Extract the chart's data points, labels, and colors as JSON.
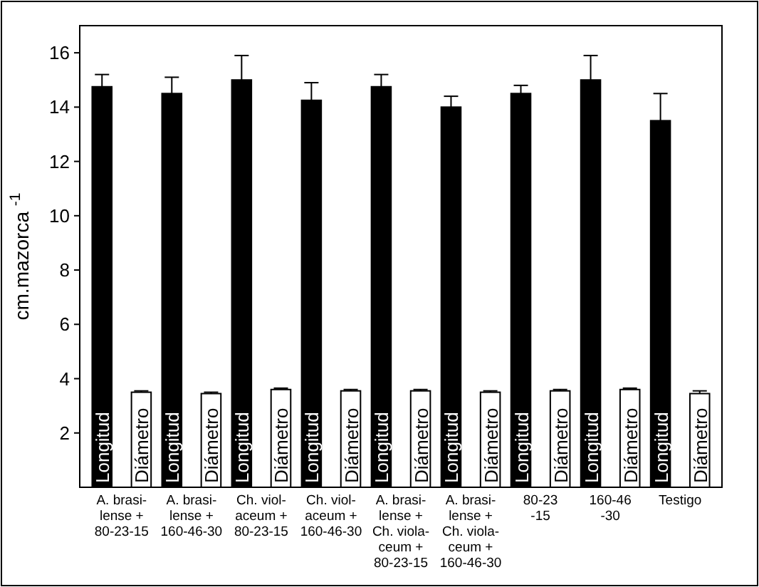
{
  "chart_data": {
    "type": "bar",
    "ylabel": "cm.mazorca $^{-1}$",
    "categories": [
      "A. brasi-\nlense +\n80-23-15",
      "A. brasi-\nlense +\n160-46-30",
      "Ch. viol-\naceum +\n80-23-15",
      "Ch. viol-\naceum +\n160-46-30",
      "A. brasi-\nlense +\nCh. viola-\nceum +\n80-23-15",
      "A. brasi-\nlense +\nCh. viola-\nceum +\n160-46-30",
      "80-23\n-15",
      "160-46\n-30",
      "Testigo"
    ],
    "series": [
      {
        "name": "Longitud",
        "color": "#000000",
        "values": [
          14.75,
          14.5,
          15,
          14.25,
          14.75,
          14,
          14.5,
          15,
          13.5
        ],
        "errors": [
          0.45,
          0.6,
          0.9,
          0.65,
          0.45,
          0.4,
          0.3,
          0.9,
          1.0
        ]
      },
      {
        "name": "Diámetro",
        "color": "#ffffff",
        "values": [
          3.5,
          3.45,
          3.6,
          3.55,
          3.55,
          3.5,
          3.55,
          3.6,
          3.45
        ],
        "errors": [
          0.05,
          0.05,
          0.05,
          0.05,
          0.05,
          0.05,
          0.05,
          0.05,
          0.1
        ]
      }
    ],
    "ylim": [
      0,
      17
    ],
    "yticks": [
      2,
      4,
      6,
      8,
      10,
      12,
      14,
      16
    ]
  }
}
